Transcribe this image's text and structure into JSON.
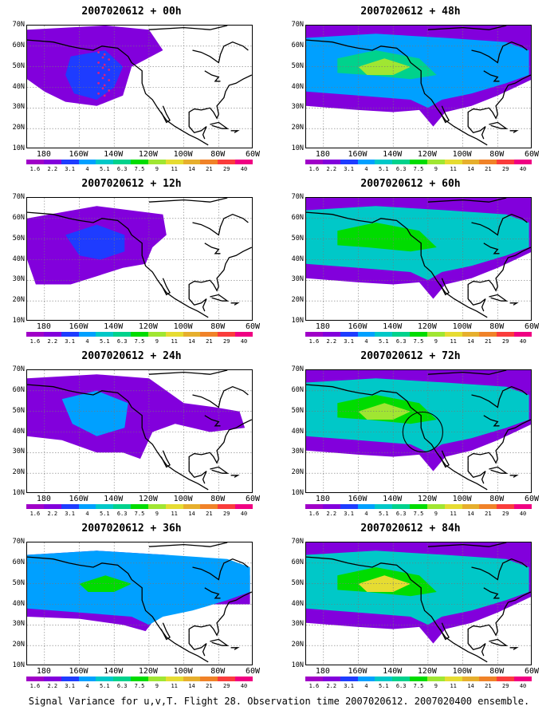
{
  "panels": [
    {
      "title": "2007020612 + 00h",
      "forecast_hour": 0
    },
    {
      "title": "2007020612 + 48h",
      "forecast_hour": 48
    },
    {
      "title": "2007020612 + 12h",
      "forecast_hour": 12
    },
    {
      "title": "2007020612 + 60h",
      "forecast_hour": 60
    },
    {
      "title": "2007020612 + 24h",
      "forecast_hour": 24
    },
    {
      "title": "2007020612 + 72h",
      "forecast_hour": 72,
      "annotation": "circle"
    },
    {
      "title": "2007020612 + 36h",
      "forecast_hour": 36
    },
    {
      "title": "2007020612 + 84h",
      "forecast_hour": 84
    }
  ],
  "axes": {
    "lat_labels": [
      "70N",
      "60N",
      "50N",
      "40N",
      "30N",
      "20N",
      "10N"
    ],
    "lon_labels": [
      "180",
      "160W",
      "140W",
      "120W",
      "100W",
      "80W",
      "60W"
    ]
  },
  "colorbar": {
    "labels": [
      "1.6",
      "2.2",
      "3.1",
      "4",
      "5.1",
      "6.3",
      "7.5",
      "9",
      "11",
      "14",
      "21",
      "29",
      "40"
    ],
    "colors": [
      "#a000c8",
      "#8200dc",
      "#1e3cff",
      "#00a0ff",
      "#00c8c8",
      "#00d28c",
      "#00dc00",
      "#a0e632",
      "#e6dc32",
      "#e6af2d",
      "#f08228",
      "#fa3c3c",
      "#f00082"
    ]
  },
  "caption": "Signal Variance for u,v,T. Flight 28. Observation time 2007020612. 2007020400 ensemble."
}
